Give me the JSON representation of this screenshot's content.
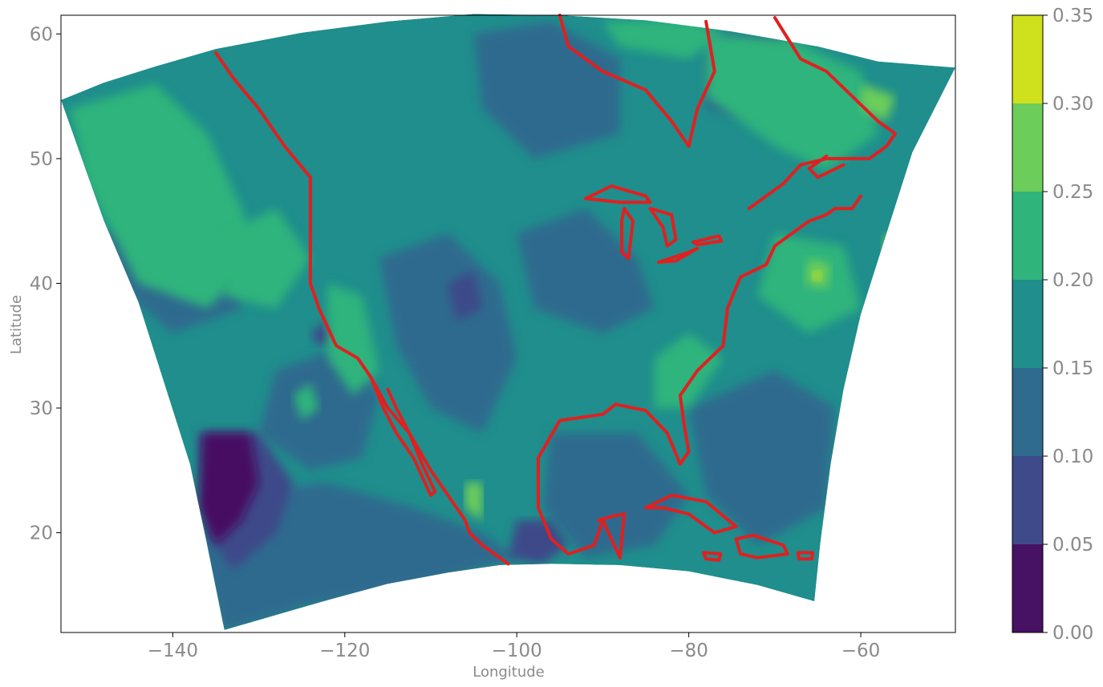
{
  "chart_data": {
    "type": "heatmap",
    "title": "",
    "xlabel": "Longitude",
    "ylabel": "Latitude",
    "xlim": [
      -153,
      -49
    ],
    "ylim": [
      12,
      61.5
    ],
    "xticks": [
      -140,
      -120,
      -100,
      -80,
      -60
    ],
    "xtick_labels": [
      "−140",
      "−120",
      "−100",
      "−80",
      "−60"
    ],
    "yticks": [
      20,
      30,
      40,
      50,
      60
    ],
    "ytick_labels": [
      "20",
      "30",
      "40",
      "50",
      "60"
    ],
    "grid": false,
    "projection": "Lambert conformal fan-shaped domain over North America",
    "colorbar": {
      "levels": [
        0.0,
        0.05,
        0.1,
        0.15,
        0.2,
        0.25,
        0.3,
        0.35
      ],
      "labels": [
        "0.00",
        "0.05",
        "0.10",
        "0.15",
        "0.20",
        "0.25",
        "0.30",
        "0.35"
      ],
      "colors": [
        "#471164",
        "#3e4a89",
        "#2f6b8e",
        "#1f8e8c",
        "#2fb47c",
        "#6ccd5a",
        "#cfe11c"
      ]
    },
    "coastline_color": "#e02020"
  }
}
